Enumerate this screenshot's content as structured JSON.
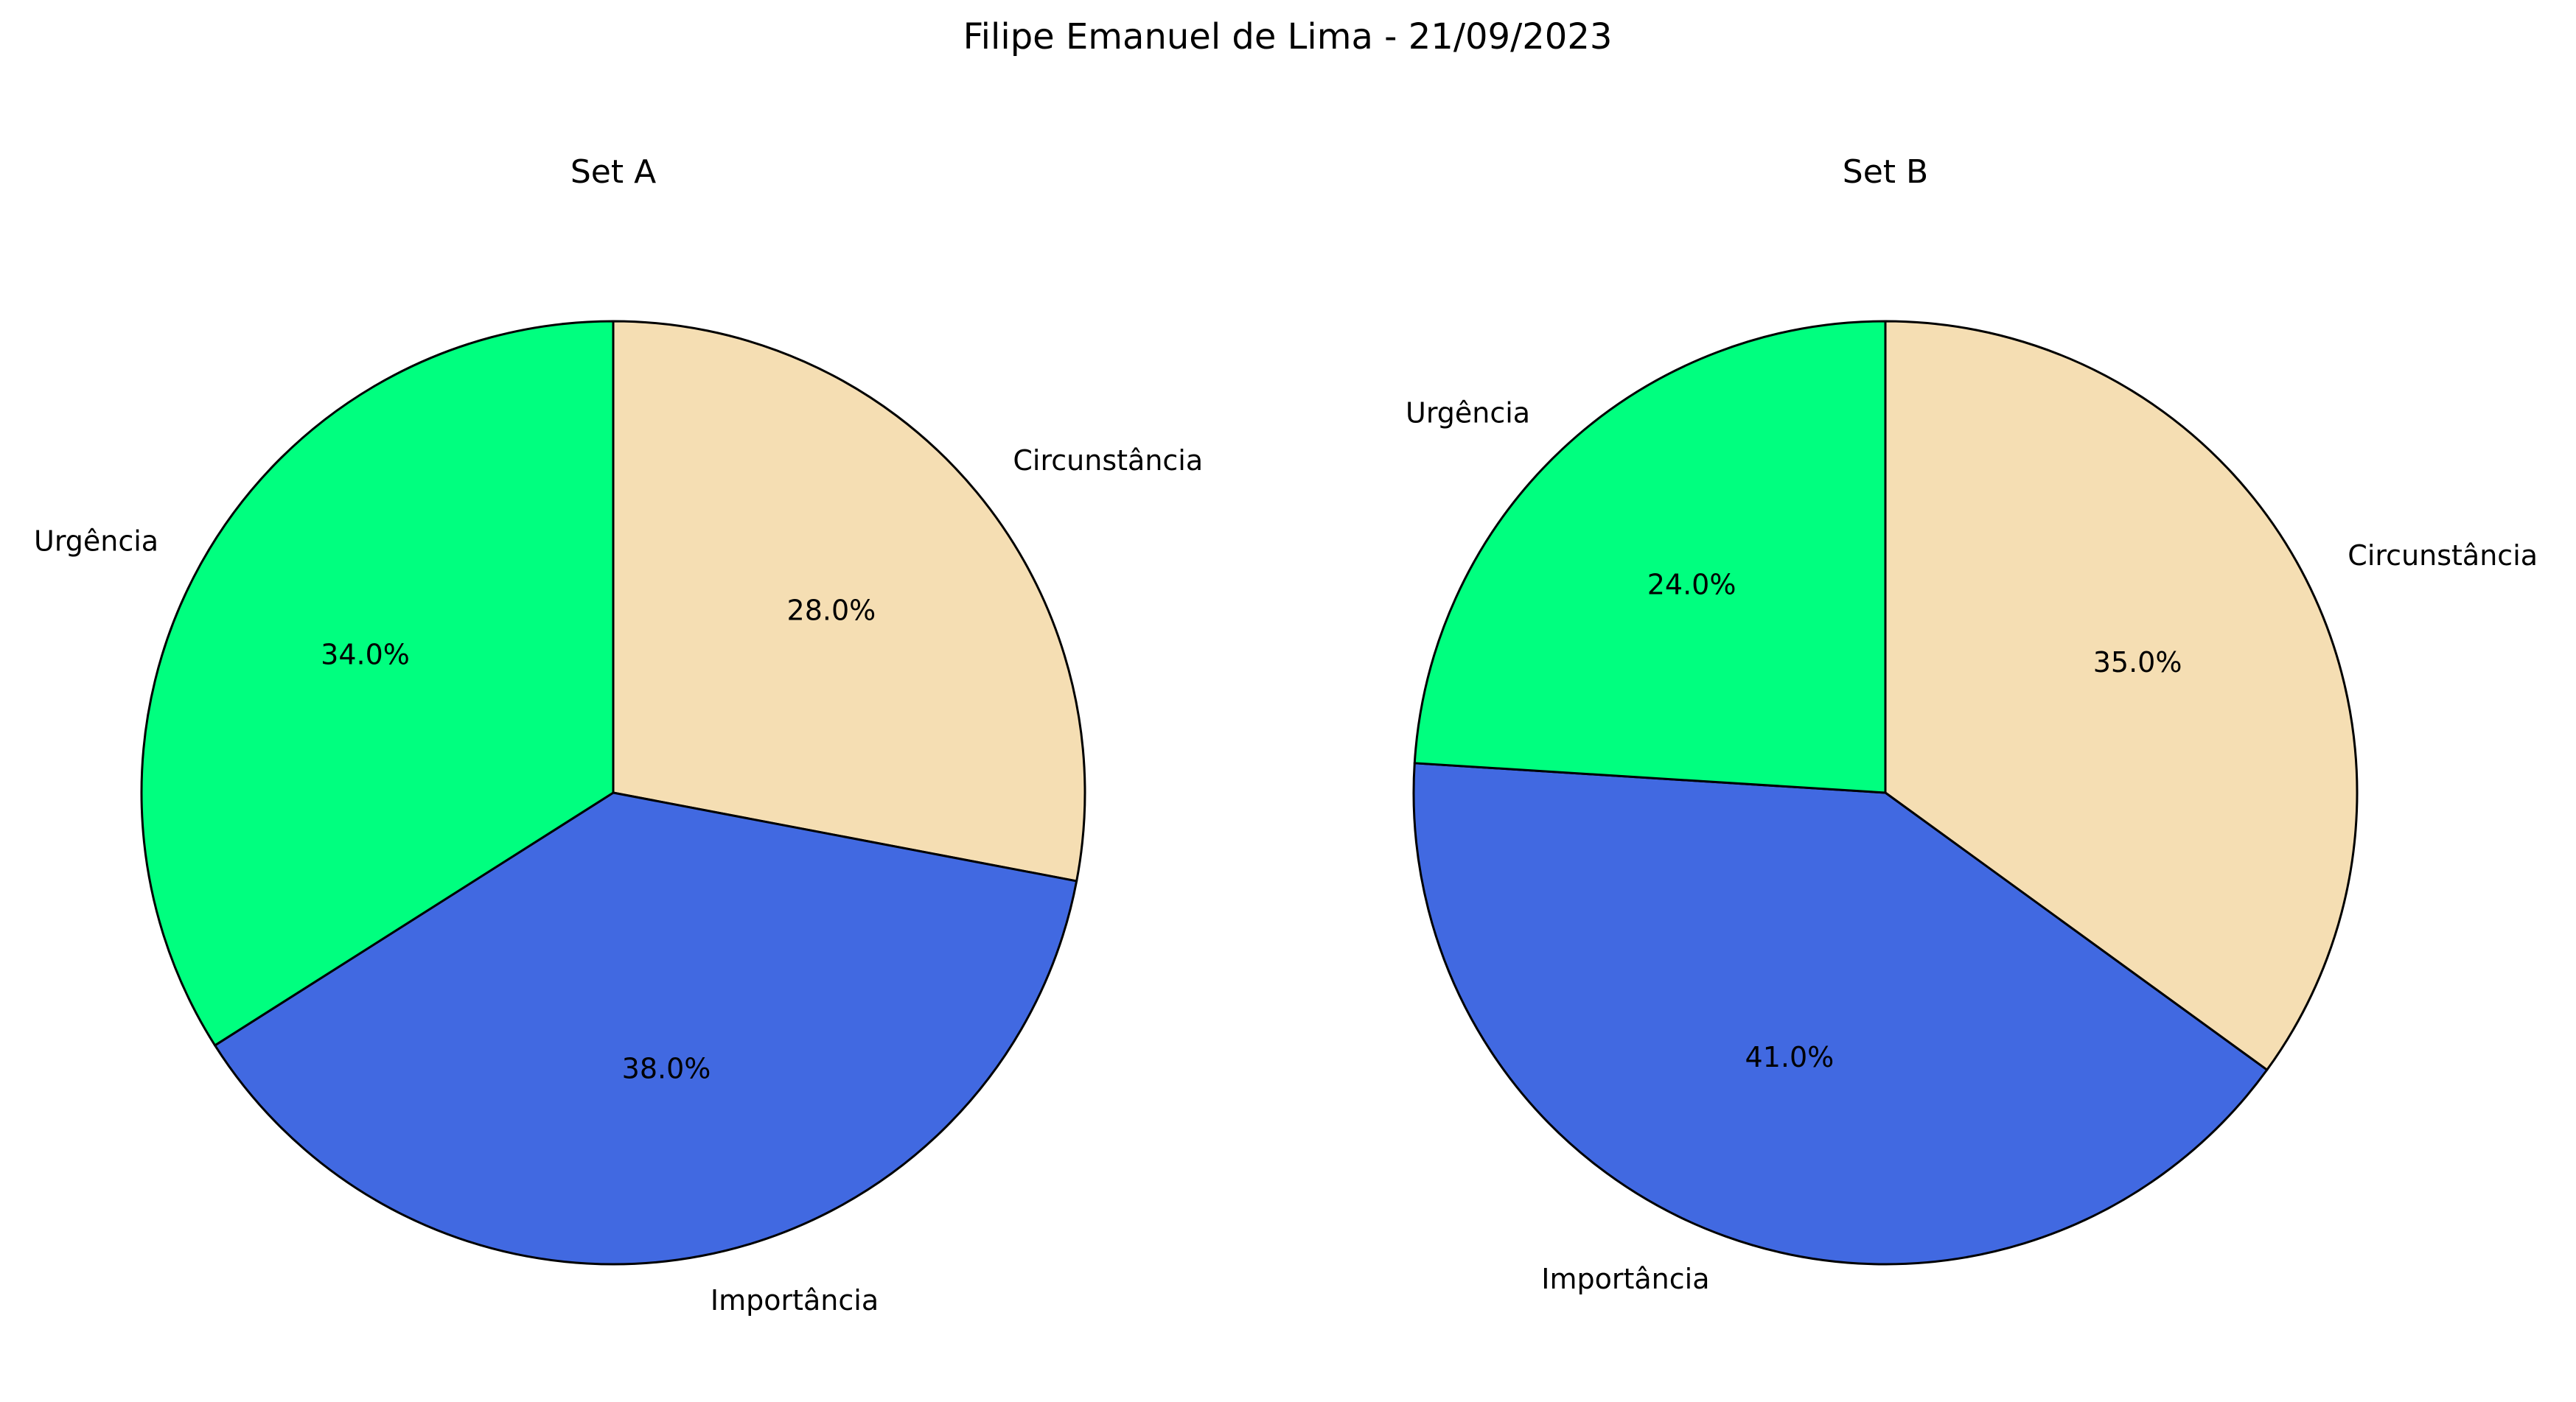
{
  "figure": {
    "suptitle": "Filipe Emanuel de Lima - 21/09/2023"
  },
  "chart_data": [
    {
      "type": "pie",
      "title": "Set A",
      "labels": [
        "Circunstância",
        "Importância",
        "Urgência"
      ],
      "values": [
        28.0,
        38.0,
        34.0
      ],
      "value_labels": [
        "28.0%",
        "38.0%",
        "34.0%"
      ],
      "colors": [
        "#F5DEB3",
        "#4169E1",
        "#00FF7F"
      ],
      "start_angle_deg": 90,
      "direction": "clockwise",
      "edge_color": "#000000"
    },
    {
      "type": "pie",
      "title": "Set B",
      "labels": [
        "Circunstância",
        "Importância",
        "Urgência"
      ],
      "values": [
        35.0,
        41.0,
        24.0
      ],
      "value_labels": [
        "35.0%",
        "41.0%",
        "24.0%"
      ],
      "colors": [
        "#F5DEB3",
        "#4169E1",
        "#00FF7F"
      ],
      "start_angle_deg": 90,
      "direction": "clockwise",
      "edge_color": "#000000"
    }
  ]
}
